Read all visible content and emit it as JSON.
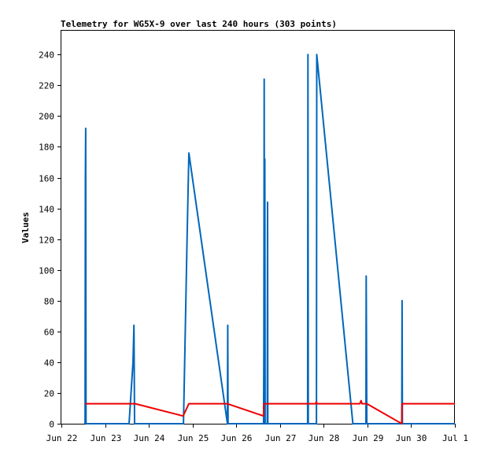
{
  "chart_data": {
    "type": "line",
    "title": "Telemetry for WG5X-9 over last 240 hours (303 points)",
    "xlabel": "",
    "ylabel": "Values",
    "x_axis": {
      "type": "date",
      "range": [
        "2024-06-22",
        "2024-07-01"
      ],
      "ticks": [
        {
          "date": "2024-06-22",
          "label": "Jun 22"
        },
        {
          "date": "2024-06-23",
          "label": "Jun 23"
        },
        {
          "date": "2024-06-24",
          "label": "Jun 24"
        },
        {
          "date": "2024-06-25",
          "label": "Jun 25"
        },
        {
          "date": "2024-06-26",
          "label": "Jun 26"
        },
        {
          "date": "2024-06-27",
          "label": "Jun 27"
        },
        {
          "date": "2024-06-28",
          "label": "Jun 28"
        },
        {
          "date": "2024-06-29",
          "label": "Jun 29"
        },
        {
          "date": "2024-06-30",
          "label": "Jun 30"
        },
        {
          "date": "2024-07-01",
          "label": "Jul 1"
        }
      ]
    },
    "y_axis": {
      "range": [
        0,
        256
      ],
      "ticks": [
        0,
        20,
        40,
        60,
        80,
        100,
        120,
        140,
        160,
        180,
        200,
        220,
        240
      ]
    },
    "grid": false,
    "legend": "none",
    "series": [
      {
        "color": "#0066bb",
        "points": [
          [
            "2024-06-22T13:00",
            0
          ],
          [
            "2024-06-22T13:10",
            160
          ],
          [
            "2024-06-22T13:20",
            192
          ],
          [
            "2024-06-22T13:30",
            0
          ],
          [
            "2024-06-23T13:10",
            0
          ],
          [
            "2024-06-23T15:20",
            40
          ],
          [
            "2024-06-23T15:50",
            64
          ],
          [
            "2024-06-23T16:10",
            0
          ],
          [
            "2024-06-24T19:00",
            0
          ],
          [
            "2024-06-24T19:10",
            10
          ],
          [
            "2024-06-24T21:00",
            120
          ],
          [
            "2024-06-24T22:00",
            176
          ],
          [
            "2024-06-25T19:10",
            0
          ],
          [
            "2024-06-25T19:20",
            64
          ],
          [
            "2024-06-25T19:30",
            0
          ],
          [
            "2024-06-26T15:00",
            0
          ],
          [
            "2024-06-26T15:10",
            48
          ],
          [
            "2024-06-26T15:20",
            224
          ],
          [
            "2024-06-26T15:30",
            0
          ],
          [
            "2024-06-26T15:40",
            172
          ],
          [
            "2024-06-26T15:50",
            0
          ],
          [
            "2024-06-26T17:00",
            0
          ],
          [
            "2024-06-26T17:10",
            144
          ],
          [
            "2024-06-26T17:20",
            0
          ],
          [
            "2024-06-27T15:10",
            0
          ],
          [
            "2024-06-27T15:20",
            240
          ],
          [
            "2024-06-27T15:30",
            0
          ],
          [
            "2024-06-27T20:00",
            0
          ],
          [
            "2024-06-27T20:10",
            240
          ],
          [
            "2024-06-28T16:00",
            0
          ],
          [
            "2024-06-28T23:10",
            0
          ],
          [
            "2024-06-28T23:20",
            96
          ],
          [
            "2024-06-28T23:30",
            48
          ],
          [
            "2024-06-28T23:40",
            0
          ],
          [
            "2024-06-29T18:50",
            0
          ],
          [
            "2024-06-29T19:00",
            80
          ],
          [
            "2024-06-29T19:10",
            0
          ],
          [
            "2024-07-01T00:00",
            0
          ]
        ]
      },
      {
        "color": "#ee0000",
        "points": [
          [
            "2024-06-22T13:00",
            13
          ],
          [
            "2024-06-23T16:30",
            13
          ],
          [
            "2024-06-24T18:50",
            5
          ],
          [
            "2024-06-24T22:00",
            13
          ],
          [
            "2024-06-25T19:00",
            13
          ],
          [
            "2024-06-26T15:00",
            5
          ],
          [
            "2024-06-26T15:10",
            13
          ],
          [
            "2024-06-27T19:20",
            13
          ],
          [
            "2024-06-27T20:00",
            14
          ],
          [
            "2024-06-27T20:30",
            13
          ],
          [
            "2024-06-28T19:50",
            13
          ],
          [
            "2024-06-28T20:30",
            15
          ],
          [
            "2024-06-28T21:00",
            13
          ],
          [
            "2024-06-28T23:40",
            13
          ],
          [
            "2024-06-29T18:50",
            0
          ],
          [
            "2024-06-29T19:00",
            13
          ],
          [
            "2024-07-01T00:00",
            13
          ]
        ]
      }
    ]
  }
}
